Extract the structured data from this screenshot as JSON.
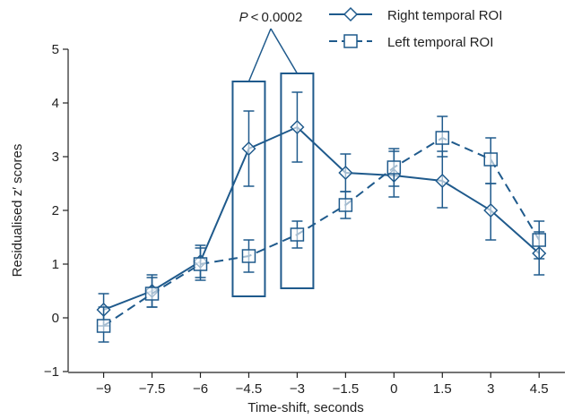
{
  "colors": {
    "series": "#1f5a8c",
    "axis": "#222222",
    "text": "#222222"
  },
  "chart_data": {
    "type": "line",
    "xlabel": "Time-shift, seconds",
    "ylabel": "Residualised z′ scores",
    "xlim": [
      -10.1,
      5.3
    ],
    "ylim": [
      -1,
      5
    ],
    "x_ticks": [
      -9,
      -7.5,
      -6,
      -4.5,
      -3,
      -1.5,
      0,
      1.5,
      3,
      4.5
    ],
    "x_tick_labels": [
      "−9",
      "−7.5",
      "−6",
      "−4.5",
      "−3",
      "−1.5",
      "0",
      "1.5",
      "3",
      "4.5"
    ],
    "y_ticks": [
      -1,
      0,
      1,
      2,
      3,
      4,
      5
    ],
    "y_tick_labels": [
      "−1",
      "0",
      "1",
      "2",
      "3",
      "4",
      "5"
    ],
    "grid": false,
    "legend_position": "top-right",
    "series": [
      {
        "name": "Right temporal ROI",
        "marker": "diamond",
        "line_style": "solid",
        "x": [
          -9,
          -7.5,
          -6,
          -4.5,
          -3,
          -1.5,
          0,
          1.5,
          3,
          4.5
        ],
        "y": [
          0.15,
          0.5,
          1.05,
          3.15,
          3.55,
          2.7,
          2.65,
          2.55,
          2.0,
          1.2
        ],
        "error_low": [
          -0.15,
          0.2,
          0.75,
          2.45,
          2.9,
          2.35,
          2.25,
          2.05,
          1.45,
          0.8
        ],
        "error_high": [
          0.45,
          0.8,
          1.35,
          3.85,
          4.2,
          3.05,
          3.1,
          3.1,
          2.5,
          1.6
        ]
      },
      {
        "name": "Left temporal ROI",
        "marker": "square",
        "line_style": "dashed",
        "x": [
          -9,
          -7.5,
          -6,
          -4.5,
          -3,
          -1.5,
          0,
          1.5,
          3,
          4.5
        ],
        "y": [
          -0.15,
          0.45,
          1.0,
          1.15,
          1.55,
          2.1,
          2.8,
          3.35,
          2.95,
          1.45
        ],
        "error_low": [
          -0.45,
          0.2,
          0.7,
          0.85,
          1.3,
          1.85,
          2.45,
          3.0,
          2.5,
          1.1
        ],
        "error_high": [
          0.2,
          0.75,
          1.3,
          1.45,
          1.8,
          2.35,
          3.15,
          3.75,
          3.35,
          1.8
        ]
      }
    ],
    "annotation": {
      "text_prefix": "P",
      "text_rest": " < 0.0002",
      "highlight_x": [
        -4.5,
        -3
      ],
      "highlight_ranges": [
        [
          0.4,
          4.4
        ],
        [
          0.55,
          4.55
        ]
      ]
    }
  }
}
